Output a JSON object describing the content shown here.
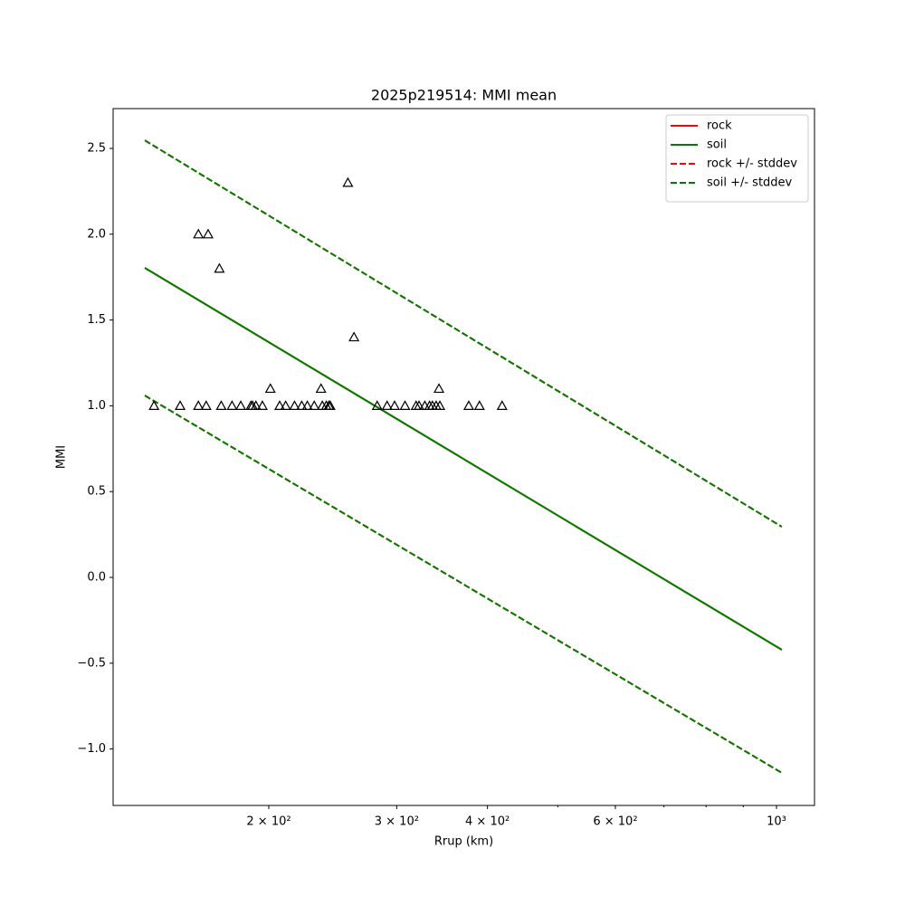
{
  "chart_data": {
    "type": "line",
    "title": "2025p219514: MMI mean",
    "xlabel": "Rrup (km)",
    "ylabel": "MMI",
    "xscale": "log",
    "xlim": [
      122.1,
      1128
    ],
    "ylim": [
      -1.329,
      2.732
    ],
    "xticks": [
      {
        "value": 200,
        "label": "2 × 10²"
      },
      {
        "value": 300,
        "label": "3 × 10²"
      },
      {
        "value": 400,
        "label": "4 × 10²"
      },
      {
        "value": 600,
        "label": "6 × 10²"
      },
      {
        "value": 1000,
        "label": "10³"
      }
    ],
    "xminorticks": [
      500,
      700,
      800,
      900
    ],
    "yticks": [
      {
        "value": -1,
        "label": "−1.0"
      },
      {
        "value": -0.5,
        "label": "−0.5"
      },
      {
        "value": 0,
        "label": "0.0"
      },
      0.5,
      {
        "value": 1,
        "label": "1.0"
      },
      1.5,
      {
        "value": 2,
        "label": "2.0"
      },
      2.5
    ],
    "legend": "upper right",
    "series": [
      {
        "name": "rock",
        "color": "#ff0000",
        "linestyle": "solid",
        "x": [
          135,
          1017
        ],
        "values": [
          1.804,
          -0.422
        ]
      },
      {
        "name": "soil",
        "color": "#008000",
        "linestyle": "solid",
        "x": [
          135,
          1017
        ],
        "values": [
          1.804,
          -0.422
        ]
      },
      {
        "name": "rock +/- stddev",
        "color": "#ff0000",
        "linestyle": "dashed",
        "x": [
          135,
          1017
        ],
        "values": [
          2.547,
          0.295
        ]
      },
      {
        "name": "soil +/- stddev",
        "color": "#008000",
        "linestyle": "dashed",
        "x": [
          135,
          1017
        ],
        "values": [
          2.547,
          0.295
        ]
      },
      {
        "color": "#ff0000",
        "linestyle": "dashed",
        "x": [
          135,
          1017
        ],
        "values": [
          1.06,
          -1.139
        ]
      },
      {
        "color": "#008000",
        "linestyle": "dashed",
        "x": [
          135,
          1017
        ],
        "values": [
          1.06,
          -1.139
        ]
      },
      {
        "marker": "triangle",
        "color": "#000000",
        "x": [
          139,
          151,
          160,
          160,
          164,
          165,
          171,
          172,
          178,
          183,
          189,
          190,
          192,
          196,
          201,
          207,
          211,
          217,
          222,
          226,
          231,
          236,
          237,
          240,
          242,
          243,
          257,
          262,
          282,
          291,
          298,
          308,
          319,
          322,
          328,
          333,
          336,
          340,
          344,
          343,
          377,
          390,
          419
        ],
        "values": [
          1.0,
          1.0,
          1.0,
          2.0,
          1.0,
          2.0,
          1.8,
          1.0,
          1.0,
          1.0,
          1.0,
          1.0,
          1.0,
          1.0,
          1.1,
          1.0,
          1.0,
          1.0,
          1.0,
          1.0,
          1.0,
          1.1,
          1.0,
          1.0,
          1.0,
          1.0,
          2.3,
          1.4,
          1.0,
          1.0,
          1.0,
          1.0,
          1.0,
          1.0,
          1.0,
          1.0,
          1.0,
          1.0,
          1.0,
          1.1,
          1.0,
          1.0,
          1.0
        ]
      }
    ]
  }
}
